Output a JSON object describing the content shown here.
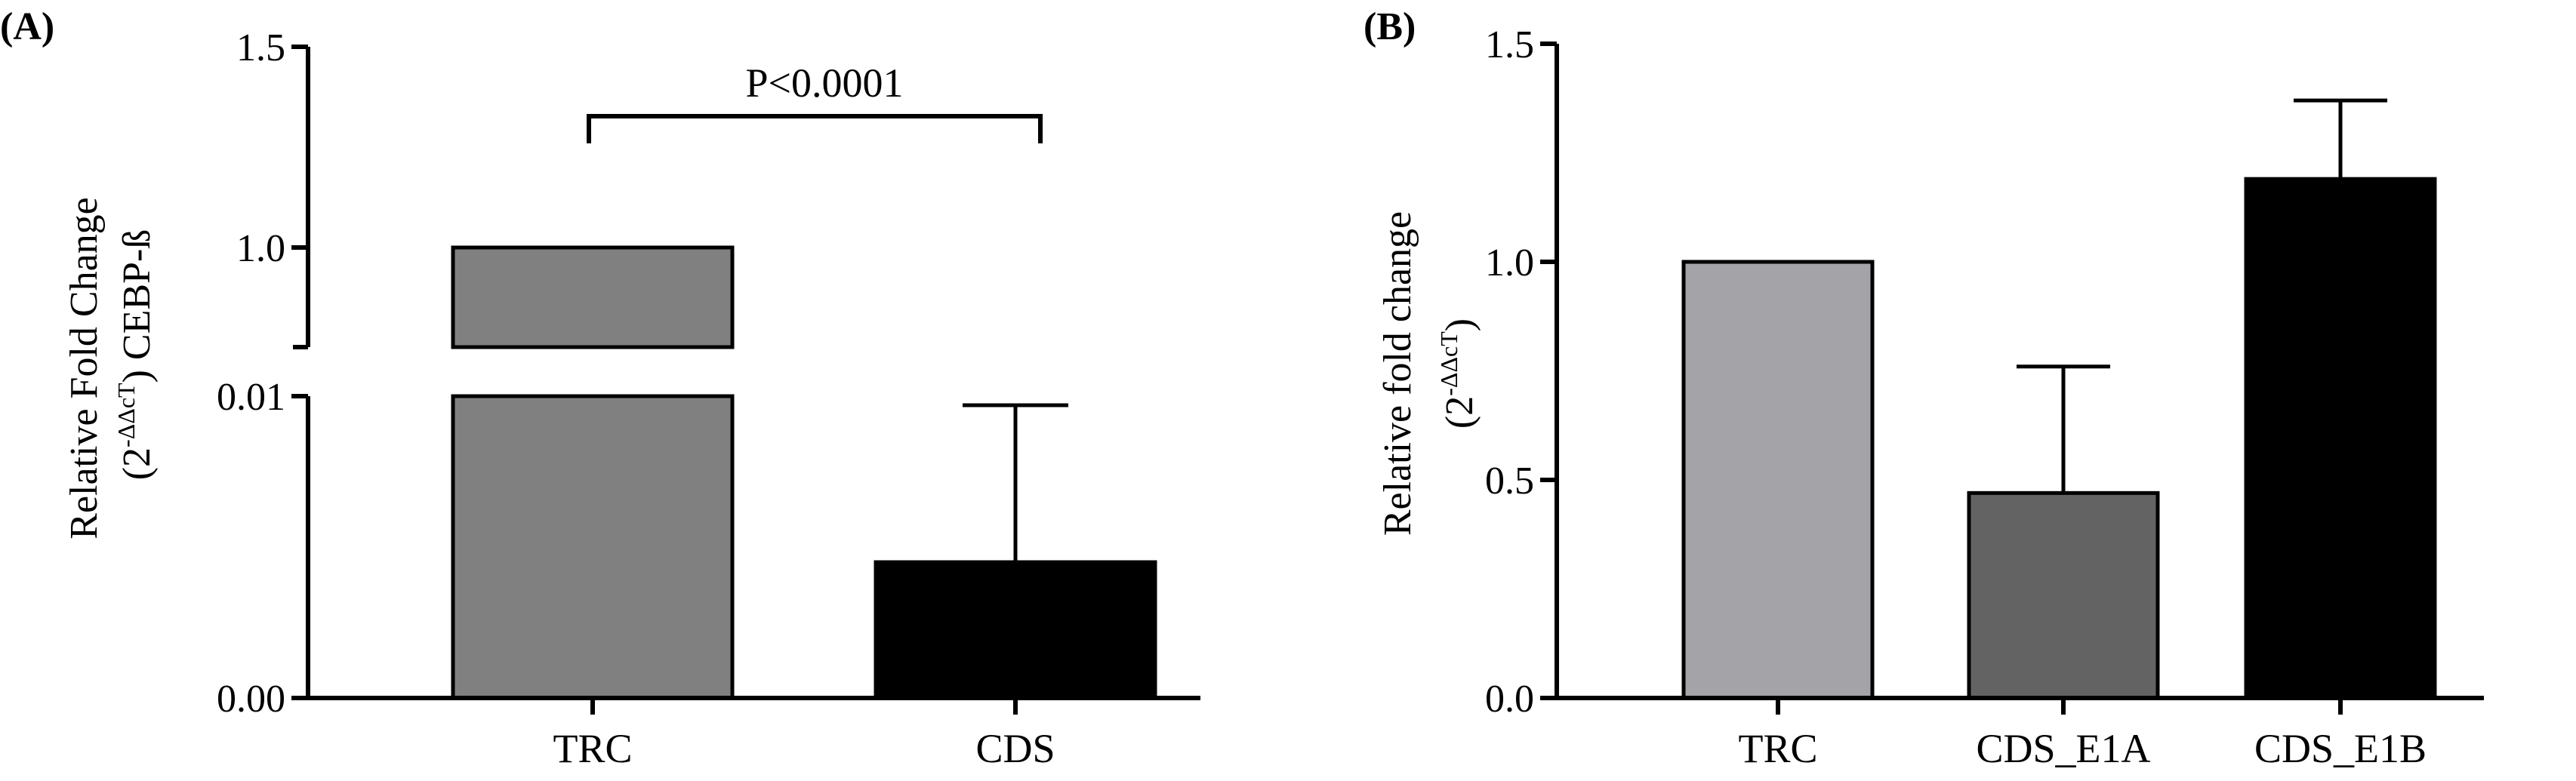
{
  "panels": [
    {
      "label": "(A)",
      "ylabel_line1": "Relative Fold Change",
      "ylabel_line2_pre": "(2",
      "ylabel_sup": "-ΔΔcT",
      "ylabel_line2_post": ") CEBP-ß",
      "significance": "P<0.0001"
    },
    {
      "label": "(B)",
      "ylabel_line1": "Relative fold change",
      "ylabel_line2_pre": "(2",
      "ylabel_sup": "-ΔΔcT",
      "ylabel_line2_post": ")"
    }
  ],
  "chart_data": [
    {
      "type": "bar",
      "title": "",
      "xlabel": "",
      "ylabel": "Relative Fold Change (2^-ΔΔcT) CEBP-ß",
      "categories": [
        "TRC",
        "CDS"
      ],
      "values": [
        1.0,
        0.0045
      ],
      "error_upper": [
        null,
        0.0097
      ],
      "colors": [
        "#808080",
        "#000000"
      ],
      "y_axis": {
        "broken": true,
        "lower_segment": [
          0,
          0.01
        ],
        "upper_segment": [
          0.85,
          1.5
        ],
        "tick_values": [
          0.0,
          0.01,
          1.0,
          1.5
        ],
        "tick_labels": [
          "0.00",
          "0.01",
          "1.0",
          "1.5"
        ]
      },
      "annotation": "P<0.0001"
    },
    {
      "type": "bar",
      "title": "",
      "xlabel": "",
      "ylabel": "Relative fold change (2^-ΔΔcT)",
      "categories": [
        "TRC",
        "CDS_E1A",
        "CDS_E1B"
      ],
      "values": [
        1.0,
        0.47,
        1.19
      ],
      "error_upper": [
        null,
        0.76,
        1.37
      ],
      "colors": [
        "#a4a3a8",
        "#636363",
        "#000000"
      ],
      "ylim": [
        0,
        1.5
      ],
      "tick_values": [
        0.0,
        0.5,
        1.0,
        1.5
      ],
      "tick_labels": [
        "0.0",
        "0.5",
        "1.0",
        "1.5"
      ]
    }
  ]
}
